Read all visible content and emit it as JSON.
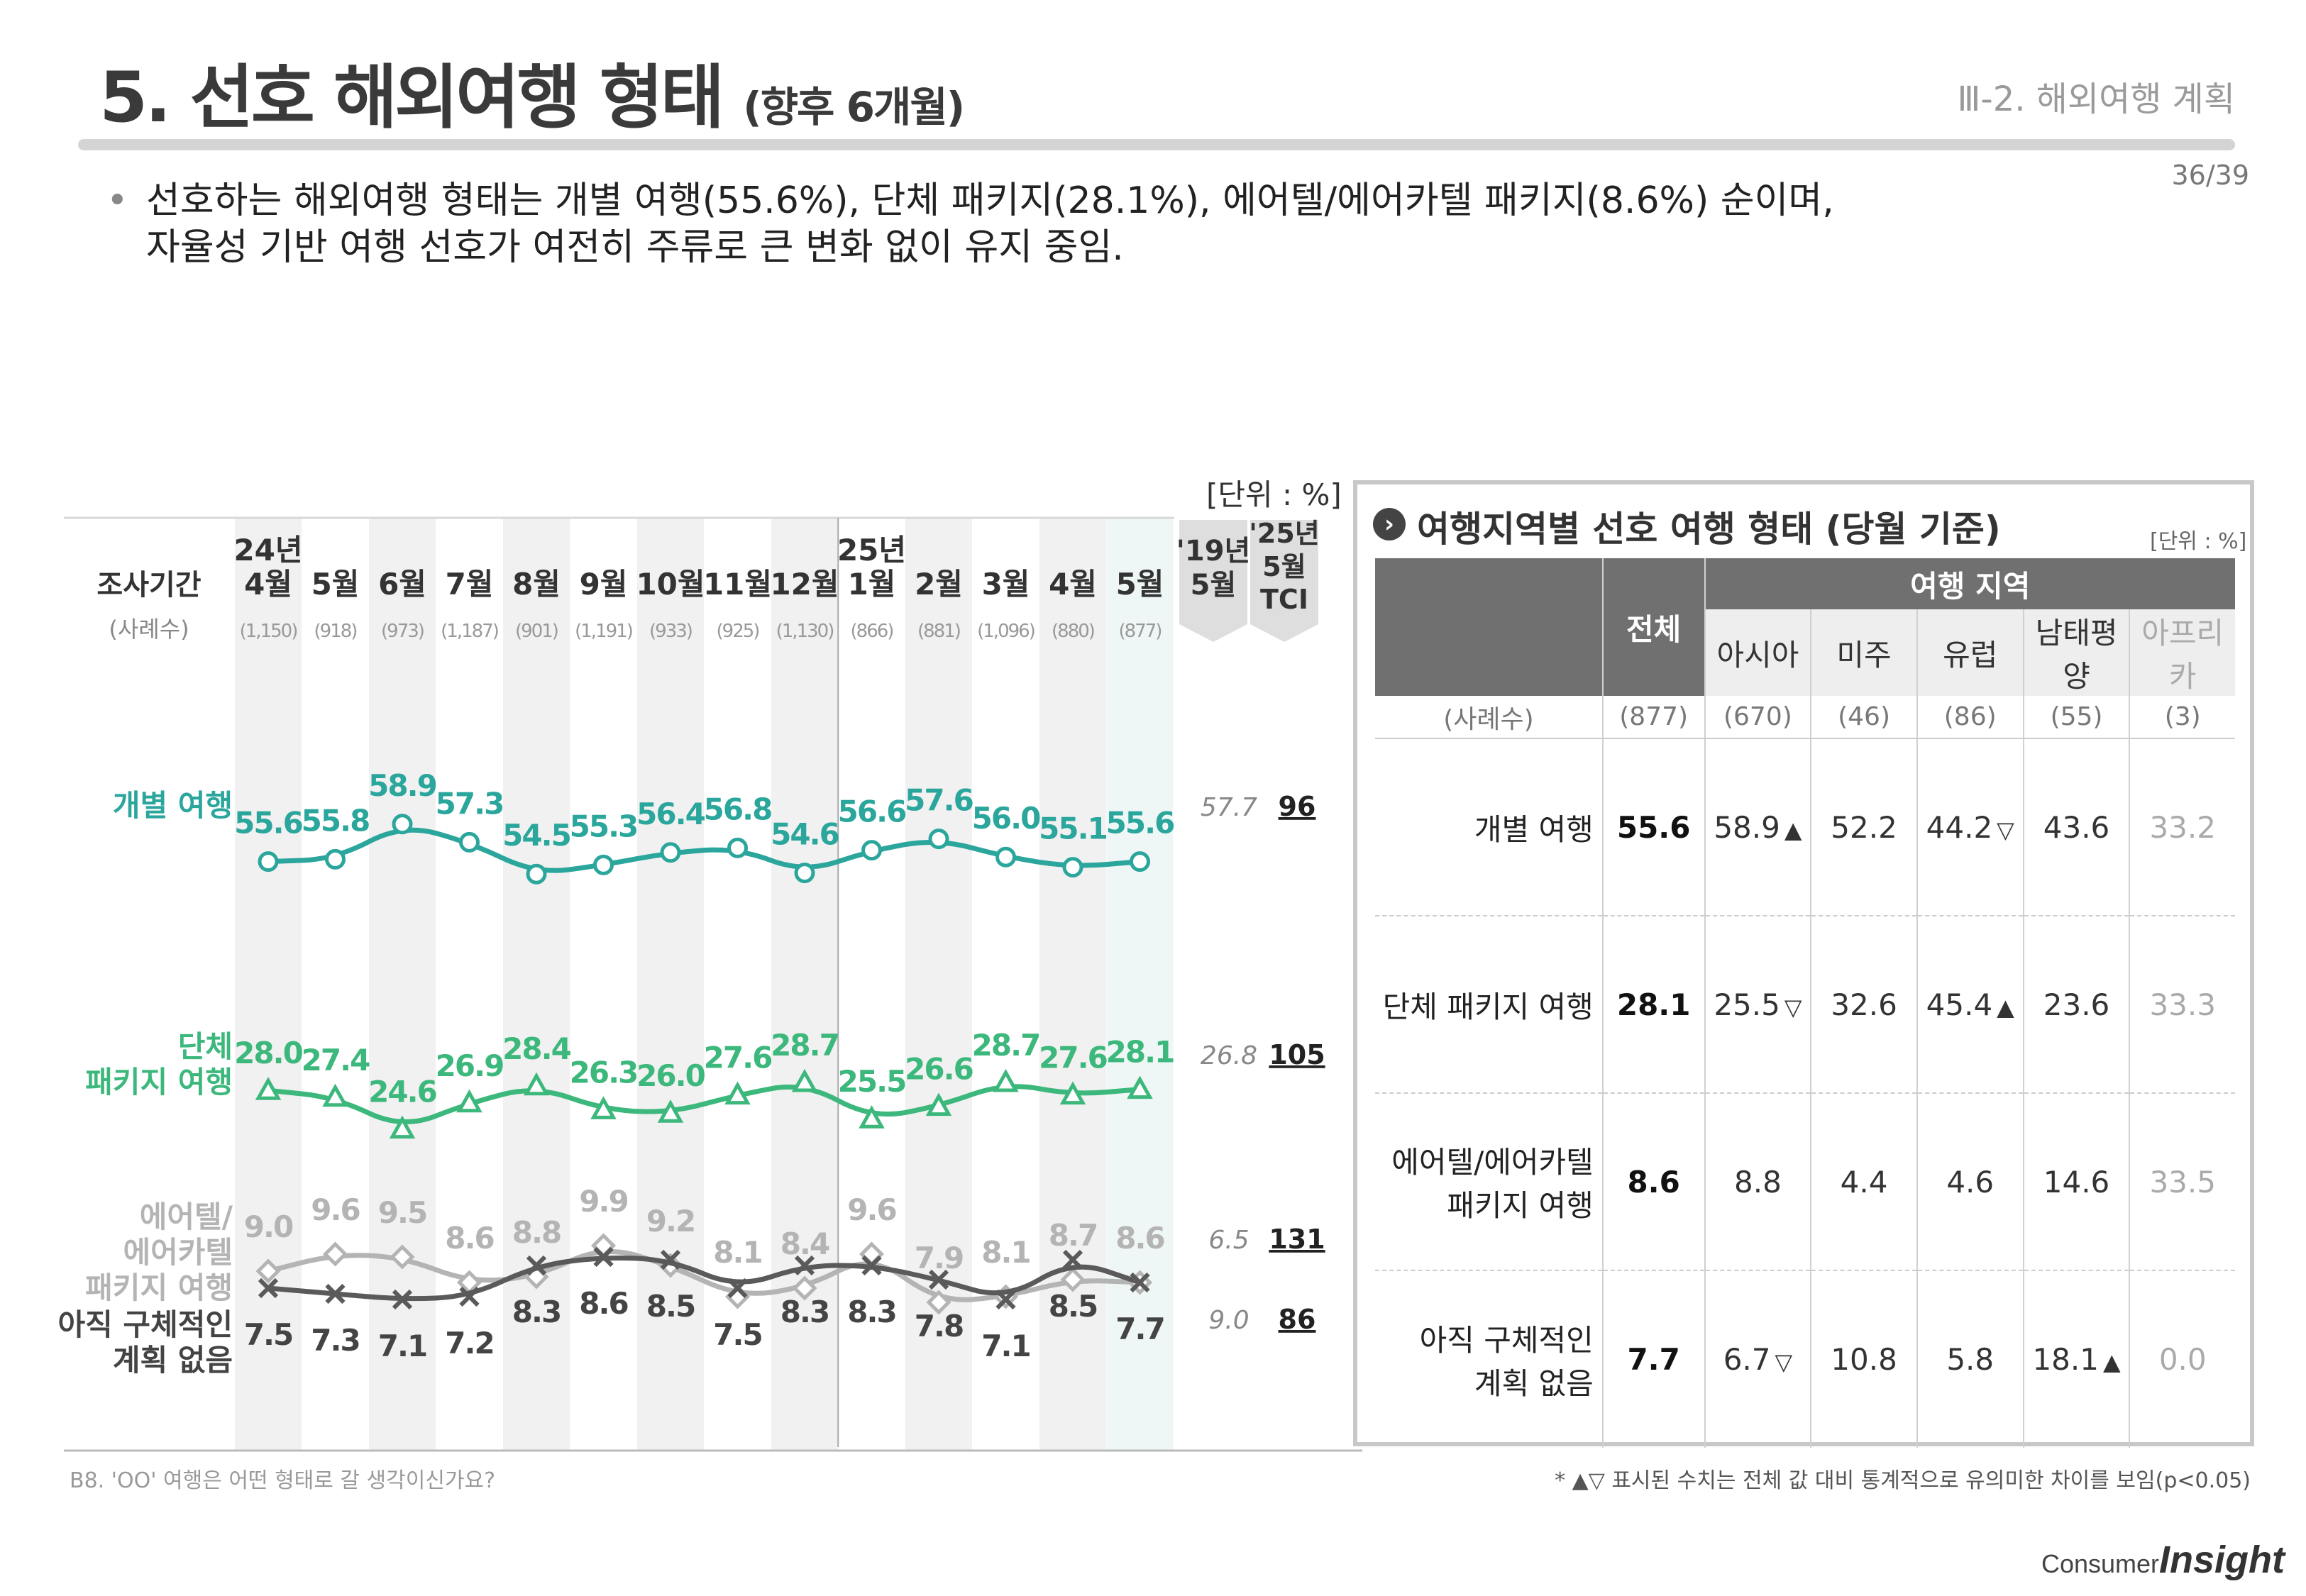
{
  "header": {
    "title": "5. 선호 해외여행 형태",
    "title_sub": "(향후 6개월)",
    "section": "Ⅲ-2. 해외여행 계획",
    "page": "36/39"
  },
  "summary": {
    "bullet": "•",
    "line1": "선호하는 해외여행 형태는 개별 여행(55.6%), 단체 패키지(28.1%), 에어텔/에어카텔 패키지(8.6%) 순이며,",
    "line2": "자율성 기반 여행 선호가 여전히 주류로 큰 변화 없이 유지 중임."
  },
  "left_unit": "[단위 : %]",
  "chart_data": {
    "type": "line",
    "row_header_label": "조사기간",
    "row_header_count": "(사례수)",
    "periods": [
      {
        "year": "24년",
        "month": "4월",
        "n": "(1,150)"
      },
      {
        "year": "",
        "month": "5월",
        "n": "(918)"
      },
      {
        "year": "",
        "month": "6월",
        "n": "(973)"
      },
      {
        "year": "",
        "month": "7월",
        "n": "(1,187)"
      },
      {
        "year": "",
        "month": "8월",
        "n": "(901)"
      },
      {
        "year": "",
        "month": "9월",
        "n": "(1,191)"
      },
      {
        "year": "",
        "month": "10월",
        "n": "(933)"
      },
      {
        "year": "",
        "month": "11월",
        "n": "(925)"
      },
      {
        "year": "",
        "month": "12월",
        "n": "(1,130)"
      },
      {
        "year": "25년",
        "month": "1월",
        "n": "(866)"
      },
      {
        "year": "",
        "month": "2월",
        "n": "(881)"
      },
      {
        "year": "",
        "month": "3월",
        "n": "(1,096)"
      },
      {
        "year": "",
        "month": "4월",
        "n": "(880)"
      },
      {
        "year": "",
        "month": "5월",
        "n": "(877)"
      }
    ],
    "ref_cols": {
      "y19_label1": "'19년",
      "y19_label2": "5월",
      "tci_label1": "'25년",
      "tci_label2": "5월",
      "tci_label3": "TCI"
    },
    "series": [
      {
        "name": "개별 여행",
        "label_lines": [
          "개별 여행"
        ],
        "color": "#2ba69c",
        "marker": "circle",
        "values": [
          55.6,
          55.8,
          58.9,
          57.3,
          54.5,
          55.3,
          56.4,
          56.8,
          54.6,
          56.6,
          57.6,
          56.0,
          55.1,
          55.6
        ],
        "y19": "57.7",
        "tci": "96"
      },
      {
        "name": "단체 패키지 여행",
        "label_lines": [
          "단체",
          "패키지 여행"
        ],
        "color": "#3db87c",
        "marker": "triangle",
        "values": [
          28.0,
          27.4,
          24.6,
          26.9,
          28.4,
          26.3,
          26.0,
          27.6,
          28.7,
          25.5,
          26.6,
          28.7,
          27.6,
          28.1
        ],
        "y19": "26.8",
        "tci": "105"
      },
      {
        "name": "에어텔/에어카텔 패키지 여행",
        "label_lines": [
          "에어텔/",
          "에어카텔",
          "패키지 여행"
        ],
        "color": "#b4b4b4",
        "marker": "diamond",
        "values": [
          9.0,
          9.6,
          9.5,
          8.6,
          8.8,
          9.9,
          9.2,
          8.1,
          8.4,
          9.6,
          7.9,
          8.1,
          8.7,
          8.6
        ],
        "y19": "6.5",
        "tci": "131"
      },
      {
        "name": "아직 구체적인 계획 없음",
        "label_lines": [
          "아직 구체적인",
          "계획 없음"
        ],
        "color": "#5a5a5a",
        "marker": "x",
        "values": [
          7.5,
          7.3,
          7.1,
          7.2,
          8.3,
          8.6,
          8.5,
          7.5,
          8.3,
          8.3,
          7.8,
          7.1,
          8.5,
          7.7
        ],
        "y19": "9.0",
        "tci": "86"
      }
    ]
  },
  "question": "B8. 'OO' 여행은 어떤 형태로 갈 생각이신가요?",
  "footnote": "* ▲▽ 표시된 수치는 전체 값 대비 통계적으로 유의미한 차이를 보임(p<0.05)",
  "panel": {
    "icon": "›",
    "title": "여행지역별 선호 여행 형태 (당월 기준)",
    "unit": "[단위 : %]",
    "region_header": "여행 지역",
    "total_header": "전체",
    "regions": [
      "아시아",
      "미주",
      "유럽",
      "남태평양",
      "아프리카"
    ],
    "count_label": "(사례수)",
    "total_count": "(877)",
    "region_counts": [
      "(670)",
      "(46)",
      "(86)",
      "(55)",
      "(3)"
    ],
    "rows": [
      {
        "label_lines": [
          "개별 여행"
        ],
        "total": "55.6",
        "vals": [
          "58.9",
          "52.2",
          "44.2",
          "43.6",
          "33.2"
        ],
        "marks": [
          "▲",
          "",
          "▽",
          "",
          ""
        ]
      },
      {
        "label_lines": [
          "단체 패키지 여행"
        ],
        "total": "28.1",
        "vals": [
          "25.5",
          "32.6",
          "45.4",
          "23.6",
          "33.3"
        ],
        "marks": [
          "▽",
          "",
          "▲",
          "",
          ""
        ]
      },
      {
        "label_lines": [
          "에어텔/에어카텔",
          "패키지 여행"
        ],
        "total": "8.6",
        "vals": [
          "8.8",
          "4.4",
          "4.6",
          "14.6",
          "33.5"
        ],
        "marks": [
          "",
          "",
          "",
          "",
          ""
        ]
      },
      {
        "label_lines": [
          "아직 구체적인",
          "계획 없음"
        ],
        "total": "7.7",
        "vals": [
          "6.7",
          "10.8",
          "5.8",
          "18.1",
          "0.0"
        ],
        "marks": [
          "▽",
          "",
          "",
          "▲",
          ""
        ]
      }
    ]
  },
  "logo": {
    "prefix": "Consumer",
    "main": "Insight"
  }
}
